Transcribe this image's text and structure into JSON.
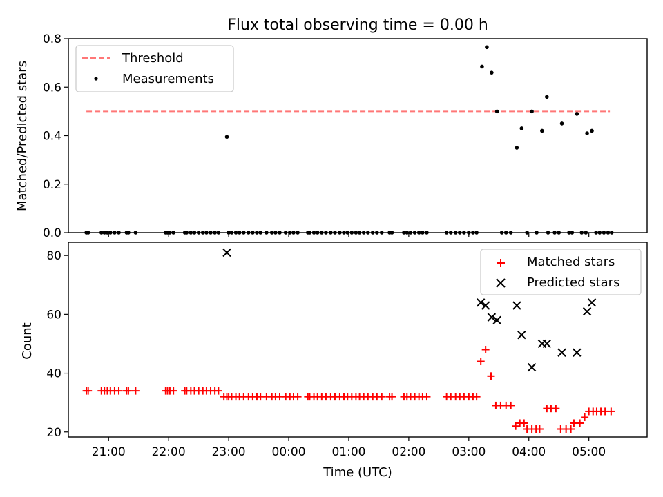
{
  "chart_data": [
    {
      "type": "scatter",
      "title": "Flux total observing time = 0.00 h",
      "xlabel": "",
      "ylabel": "Matched/Predicted stars",
      "ylim": [
        0,
        0.8
      ],
      "yticks": [
        "0.0",
        "0.2",
        "0.4",
        "0.6",
        "0.8"
      ],
      "xlim_hours": [
        20.33,
        29.97
      ],
      "legend_position": "top-left",
      "grid": false,
      "threshold": {
        "name": "Threshold",
        "value": 0.5,
        "x_range": [
          20.63,
          29.35
        ],
        "color": "#ff7777"
      },
      "series": [
        {
          "name": "Measurements",
          "color": "#000000",
          "marker": "dot",
          "points": [
            [
              20.63,
              0
            ],
            [
              20.66,
              0
            ],
            [
              20.88,
              0
            ],
            [
              20.93,
              0
            ],
            [
              20.98,
              0
            ],
            [
              21.03,
              0
            ],
            [
              21.1,
              0
            ],
            [
              21.17,
              0
            ],
            [
              21.3,
              0
            ],
            [
              21.33,
              0
            ],
            [
              21.45,
              0
            ],
            [
              21.95,
              0
            ],
            [
              21.98,
              0
            ],
            [
              22.02,
              0
            ],
            [
              22.08,
              0
            ],
            [
              22.27,
              0
            ],
            [
              22.3,
              0
            ],
            [
              22.37,
              0
            ],
            [
              22.43,
              0
            ],
            [
              22.5,
              0
            ],
            [
              22.57,
              0
            ],
            [
              22.63,
              0
            ],
            [
              22.7,
              0
            ],
            [
              22.77,
              0
            ],
            [
              22.83,
              0
            ],
            [
              22.97,
              0.395
            ],
            [
              23.0,
              0
            ],
            [
              23.05,
              0
            ],
            [
              23.12,
              0
            ],
            [
              23.18,
              0
            ],
            [
              23.25,
              0
            ],
            [
              23.33,
              0
            ],
            [
              23.4,
              0
            ],
            [
              23.47,
              0
            ],
            [
              23.53,
              0
            ],
            [
              23.63,
              0
            ],
            [
              23.72,
              0
            ],
            [
              23.78,
              0
            ],
            [
              23.85,
              0
            ],
            [
              23.95,
              0
            ],
            [
              24.02,
              0
            ],
            [
              24.08,
              0
            ],
            [
              24.15,
              0
            ],
            [
              24.32,
              0
            ],
            [
              24.35,
              0
            ],
            [
              24.42,
              0
            ],
            [
              24.48,
              0
            ],
            [
              24.55,
              0
            ],
            [
              24.62,
              0
            ],
            [
              24.7,
              0
            ],
            [
              24.77,
              0
            ],
            [
              24.85,
              0
            ],
            [
              24.92,
              0
            ],
            [
              24.98,
              0
            ],
            [
              25.05,
              0
            ],
            [
              25.12,
              0
            ],
            [
              25.18,
              0
            ],
            [
              25.25,
              0
            ],
            [
              25.32,
              0
            ],
            [
              25.4,
              0
            ],
            [
              25.47,
              0
            ],
            [
              25.55,
              0
            ],
            [
              25.68,
              0
            ],
            [
              25.72,
              0
            ],
            [
              25.92,
              0
            ],
            [
              25.97,
              0
            ],
            [
              26.03,
              0
            ],
            [
              26.1,
              0
            ],
            [
              26.17,
              0
            ],
            [
              26.23,
              0
            ],
            [
              26.3,
              0
            ],
            [
              26.63,
              0
            ],
            [
              26.7,
              0
            ],
            [
              26.78,
              0
            ],
            [
              26.85,
              0
            ],
            [
              26.92,
              0
            ],
            [
              27.0,
              0
            ],
            [
              27.07,
              0
            ],
            [
              27.13,
              0
            ],
            [
              27.22,
              0.685
            ],
            [
              27.3,
              0.765
            ],
            [
              27.38,
              0.66
            ],
            [
              27.47,
              0.5
            ],
            [
              27.55,
              0
            ],
            [
              27.62,
              0
            ],
            [
              27.7,
              0
            ],
            [
              27.8,
              0.35
            ],
            [
              27.88,
              0.43
            ],
            [
              27.97,
              0
            ],
            [
              28.05,
              0.5
            ],
            [
              28.13,
              0
            ],
            [
              28.22,
              0.42
            ],
            [
              28.32,
              0
            ],
            [
              28.3,
              0.56
            ],
            [
              28.43,
              0
            ],
            [
              28.5,
              0
            ],
            [
              28.55,
              0.45
            ],
            [
              28.67,
              0
            ],
            [
              28.72,
              0
            ],
            [
              28.8,
              0.49
            ],
            [
              28.88,
              0
            ],
            [
              28.95,
              0
            ],
            [
              28.97,
              0.41
            ],
            [
              29.05,
              0.42
            ],
            [
              29.12,
              0
            ],
            [
              29.18,
              0
            ],
            [
              29.25,
              0
            ],
            [
              29.32,
              0
            ],
            [
              29.38,
              0
            ]
          ]
        }
      ]
    },
    {
      "type": "scatter",
      "title": "",
      "xlabel": "Time (UTC)",
      "ylabel": "Count",
      "ylim": [
        18.3,
        84.5
      ],
      "yticks": [
        "20",
        "40",
        "60",
        "80"
      ],
      "xlim_hours": [
        20.33,
        29.97
      ],
      "xticks": [
        "21:00",
        "22:00",
        "23:00",
        "00:00",
        "01:00",
        "02:00",
        "03:00",
        "04:00",
        "05:00"
      ],
      "legend_position": "top-right",
      "grid": false,
      "series": [
        {
          "name": "Matched stars",
          "color": "#ff0000",
          "marker": "plus",
          "points": [
            [
              20.63,
              34
            ],
            [
              20.66,
              34
            ],
            [
              20.88,
              34
            ],
            [
              20.93,
              34
            ],
            [
              20.98,
              34
            ],
            [
              21.03,
              34
            ],
            [
              21.1,
              34
            ],
            [
              21.17,
              34
            ],
            [
              21.3,
              34
            ],
            [
              21.33,
              34
            ],
            [
              21.45,
              34
            ],
            [
              21.95,
              34
            ],
            [
              21.98,
              34
            ],
            [
              22.02,
              34
            ],
            [
              22.08,
              34
            ],
            [
              22.27,
              34
            ],
            [
              22.3,
              34
            ],
            [
              22.37,
              34
            ],
            [
              22.43,
              34
            ],
            [
              22.5,
              34
            ],
            [
              22.57,
              34
            ],
            [
              22.63,
              34
            ],
            [
              22.7,
              34
            ],
            [
              22.77,
              34
            ],
            [
              22.83,
              34
            ],
            [
              22.92,
              32
            ],
            [
              22.97,
              32
            ],
            [
              23.0,
              32
            ],
            [
              23.05,
              32
            ],
            [
              23.12,
              32
            ],
            [
              23.18,
              32
            ],
            [
              23.25,
              32
            ],
            [
              23.33,
              32
            ],
            [
              23.4,
              32
            ],
            [
              23.47,
              32
            ],
            [
              23.53,
              32
            ],
            [
              23.63,
              32
            ],
            [
              23.72,
              32
            ],
            [
              23.78,
              32
            ],
            [
              23.85,
              32
            ],
            [
              23.95,
              32
            ],
            [
              24.02,
              32
            ],
            [
              24.08,
              32
            ],
            [
              24.15,
              32
            ],
            [
              24.32,
              32
            ],
            [
              24.35,
              32
            ],
            [
              24.42,
              32
            ],
            [
              24.48,
              32
            ],
            [
              24.55,
              32
            ],
            [
              24.62,
              32
            ],
            [
              24.7,
              32
            ],
            [
              24.77,
              32
            ],
            [
              24.85,
              32
            ],
            [
              24.92,
              32
            ],
            [
              24.98,
              32
            ],
            [
              25.05,
              32
            ],
            [
              25.12,
              32
            ],
            [
              25.18,
              32
            ],
            [
              25.25,
              32
            ],
            [
              25.32,
              32
            ],
            [
              25.4,
              32
            ],
            [
              25.47,
              32
            ],
            [
              25.55,
              32
            ],
            [
              25.68,
              32
            ],
            [
              25.72,
              32
            ],
            [
              25.92,
              32
            ],
            [
              25.97,
              32
            ],
            [
              26.03,
              32
            ],
            [
              26.1,
              32
            ],
            [
              26.17,
              32
            ],
            [
              26.23,
              32
            ],
            [
              26.3,
              32
            ],
            [
              26.63,
              32
            ],
            [
              26.7,
              32
            ],
            [
              26.78,
              32
            ],
            [
              26.85,
              32
            ],
            [
              26.92,
              32
            ],
            [
              27.0,
              32
            ],
            [
              27.07,
              32
            ],
            [
              27.13,
              32
            ],
            [
              27.2,
              44
            ],
            [
              27.28,
              48
            ],
            [
              27.37,
              39
            ],
            [
              27.45,
              29
            ],
            [
              27.53,
              29
            ],
            [
              27.62,
              29
            ],
            [
              27.7,
              29
            ],
            [
              27.78,
              22
            ],
            [
              27.85,
              23
            ],
            [
              27.92,
              23
            ],
            [
              27.97,
              21
            ],
            [
              28.05,
              21
            ],
            [
              28.12,
              21
            ],
            [
              28.18,
              21
            ],
            [
              28.3,
              28
            ],
            [
              28.37,
              28
            ],
            [
              28.45,
              28
            ],
            [
              28.53,
              21
            ],
            [
              28.62,
              21
            ],
            [
              28.7,
              21
            ],
            [
              28.75,
              23
            ],
            [
              28.85,
              23
            ],
            [
              28.93,
              25
            ],
            [
              29.0,
              27
            ],
            [
              29.07,
              27
            ],
            [
              29.13,
              27
            ],
            [
              29.2,
              27
            ],
            [
              29.27,
              27
            ],
            [
              29.37,
              27
            ]
          ]
        },
        {
          "name": "Predicted stars",
          "color": "#000000",
          "marker": "x",
          "points": [
            [
              22.97,
              81
            ],
            [
              27.2,
              64
            ],
            [
              27.28,
              63
            ],
            [
              27.38,
              59
            ],
            [
              27.47,
              58
            ],
            [
              27.8,
              63
            ],
            [
              27.88,
              53
            ],
            [
              28.05,
              42
            ],
            [
              28.22,
              50
            ],
            [
              28.3,
              50
            ],
            [
              28.55,
              47
            ],
            [
              28.8,
              47
            ],
            [
              28.97,
              61
            ],
            [
              29.05,
              64
            ]
          ]
        }
      ]
    }
  ]
}
